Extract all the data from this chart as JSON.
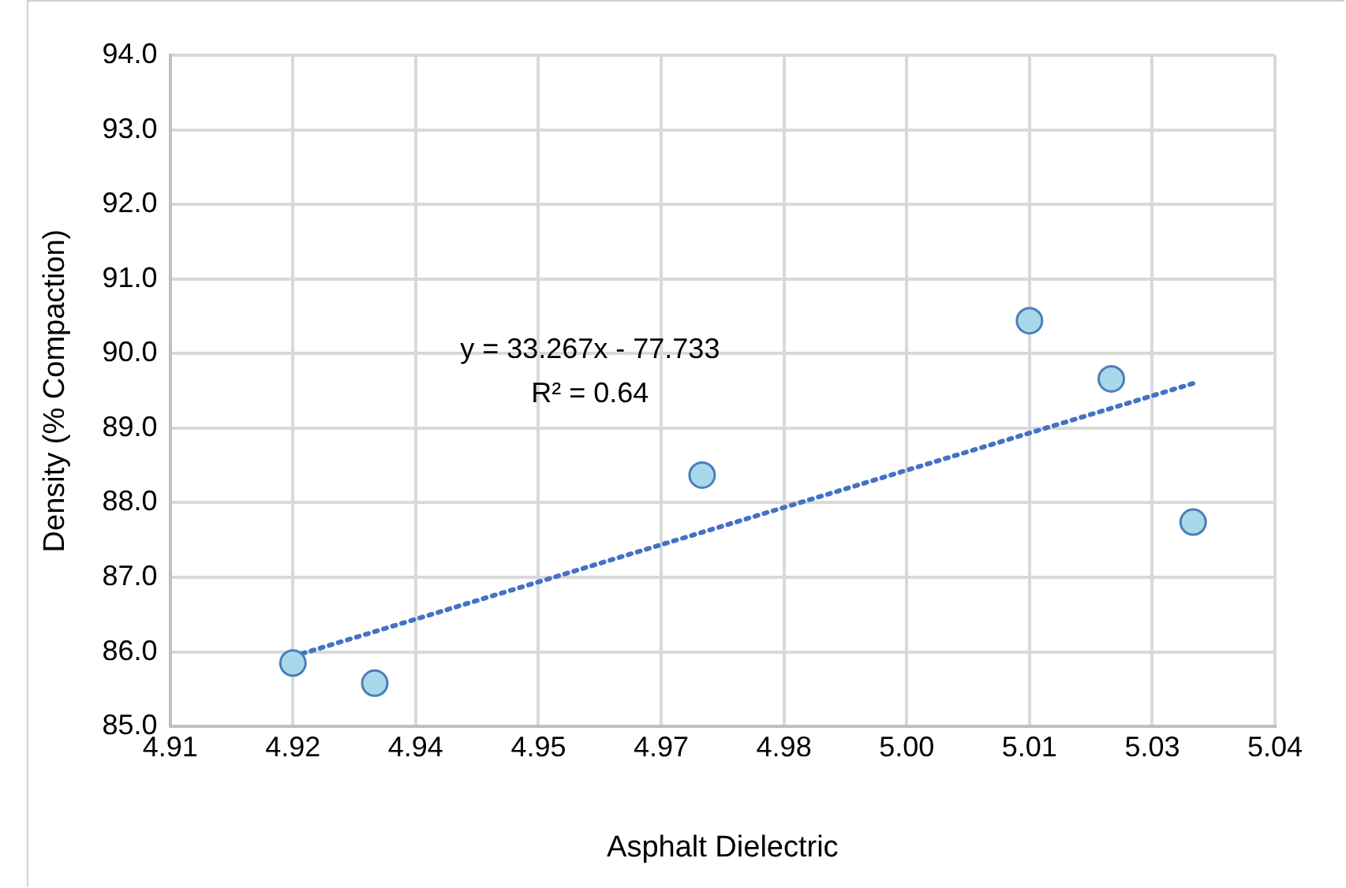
{
  "chart_data": {
    "type": "scatter",
    "xlabel": "Asphalt Dielectric",
    "ylabel": "Density (% Compaction)",
    "annotations": [
      "y = 33.267x - 77.733",
      "R² = 0.64"
    ],
    "series": [
      {
        "color": "#a9d8ea",
        "x": [
          4.92,
          4.93,
          4.97,
          5.01,
          5.02,
          5.03
        ],
        "values": [
          85.85,
          85.58,
          88.37,
          90.44,
          89.66,
          87.74
        ],
        "marker": "circle"
      },
      {
        "type": "line",
        "color": "#4472c4",
        "x": [
          4.92,
          5.03
        ],
        "values": [
          85.94,
          89.6
        ],
        "line_style": "dotted",
        "marker": "none"
      }
    ],
    "xlim": [
      4.905,
      5.04
    ],
    "xticks": [
      {
        "value": 4.905,
        "label": "4.91"
      },
      {
        "value": 4.92,
        "label": "4.92"
      },
      {
        "value": 4.935,
        "label": "4.94"
      },
      {
        "value": 4.95,
        "label": "4.95"
      },
      {
        "value": 4.965,
        "label": "4.97"
      },
      {
        "value": 4.98,
        "label": "4.98"
      },
      {
        "value": 4.995,
        "label": "5.00"
      },
      {
        "value": 5.01,
        "label": "5.01"
      },
      {
        "value": 5.025,
        "label": "5.03"
      },
      {
        "value": 5.04,
        "label": "5.04"
      }
    ],
    "ylim": [
      85,
      94
    ],
    "yticks": [
      {
        "value": 85,
        "label": "85.0"
      },
      {
        "value": 86,
        "label": "86.0"
      },
      {
        "value": 87,
        "label": "87.0"
      },
      {
        "value": 88,
        "label": "88.0"
      },
      {
        "value": 89,
        "label": "89.0"
      },
      {
        "value": 90,
        "label": "90.0"
      },
      {
        "value": 91,
        "label": "91.0"
      },
      {
        "value": 92,
        "label": "92.0"
      },
      {
        "value": 93,
        "label": "93.0"
      },
      {
        "value": 94,
        "label": "94.0"
      }
    ],
    "grid": true,
    "legend": false
  }
}
